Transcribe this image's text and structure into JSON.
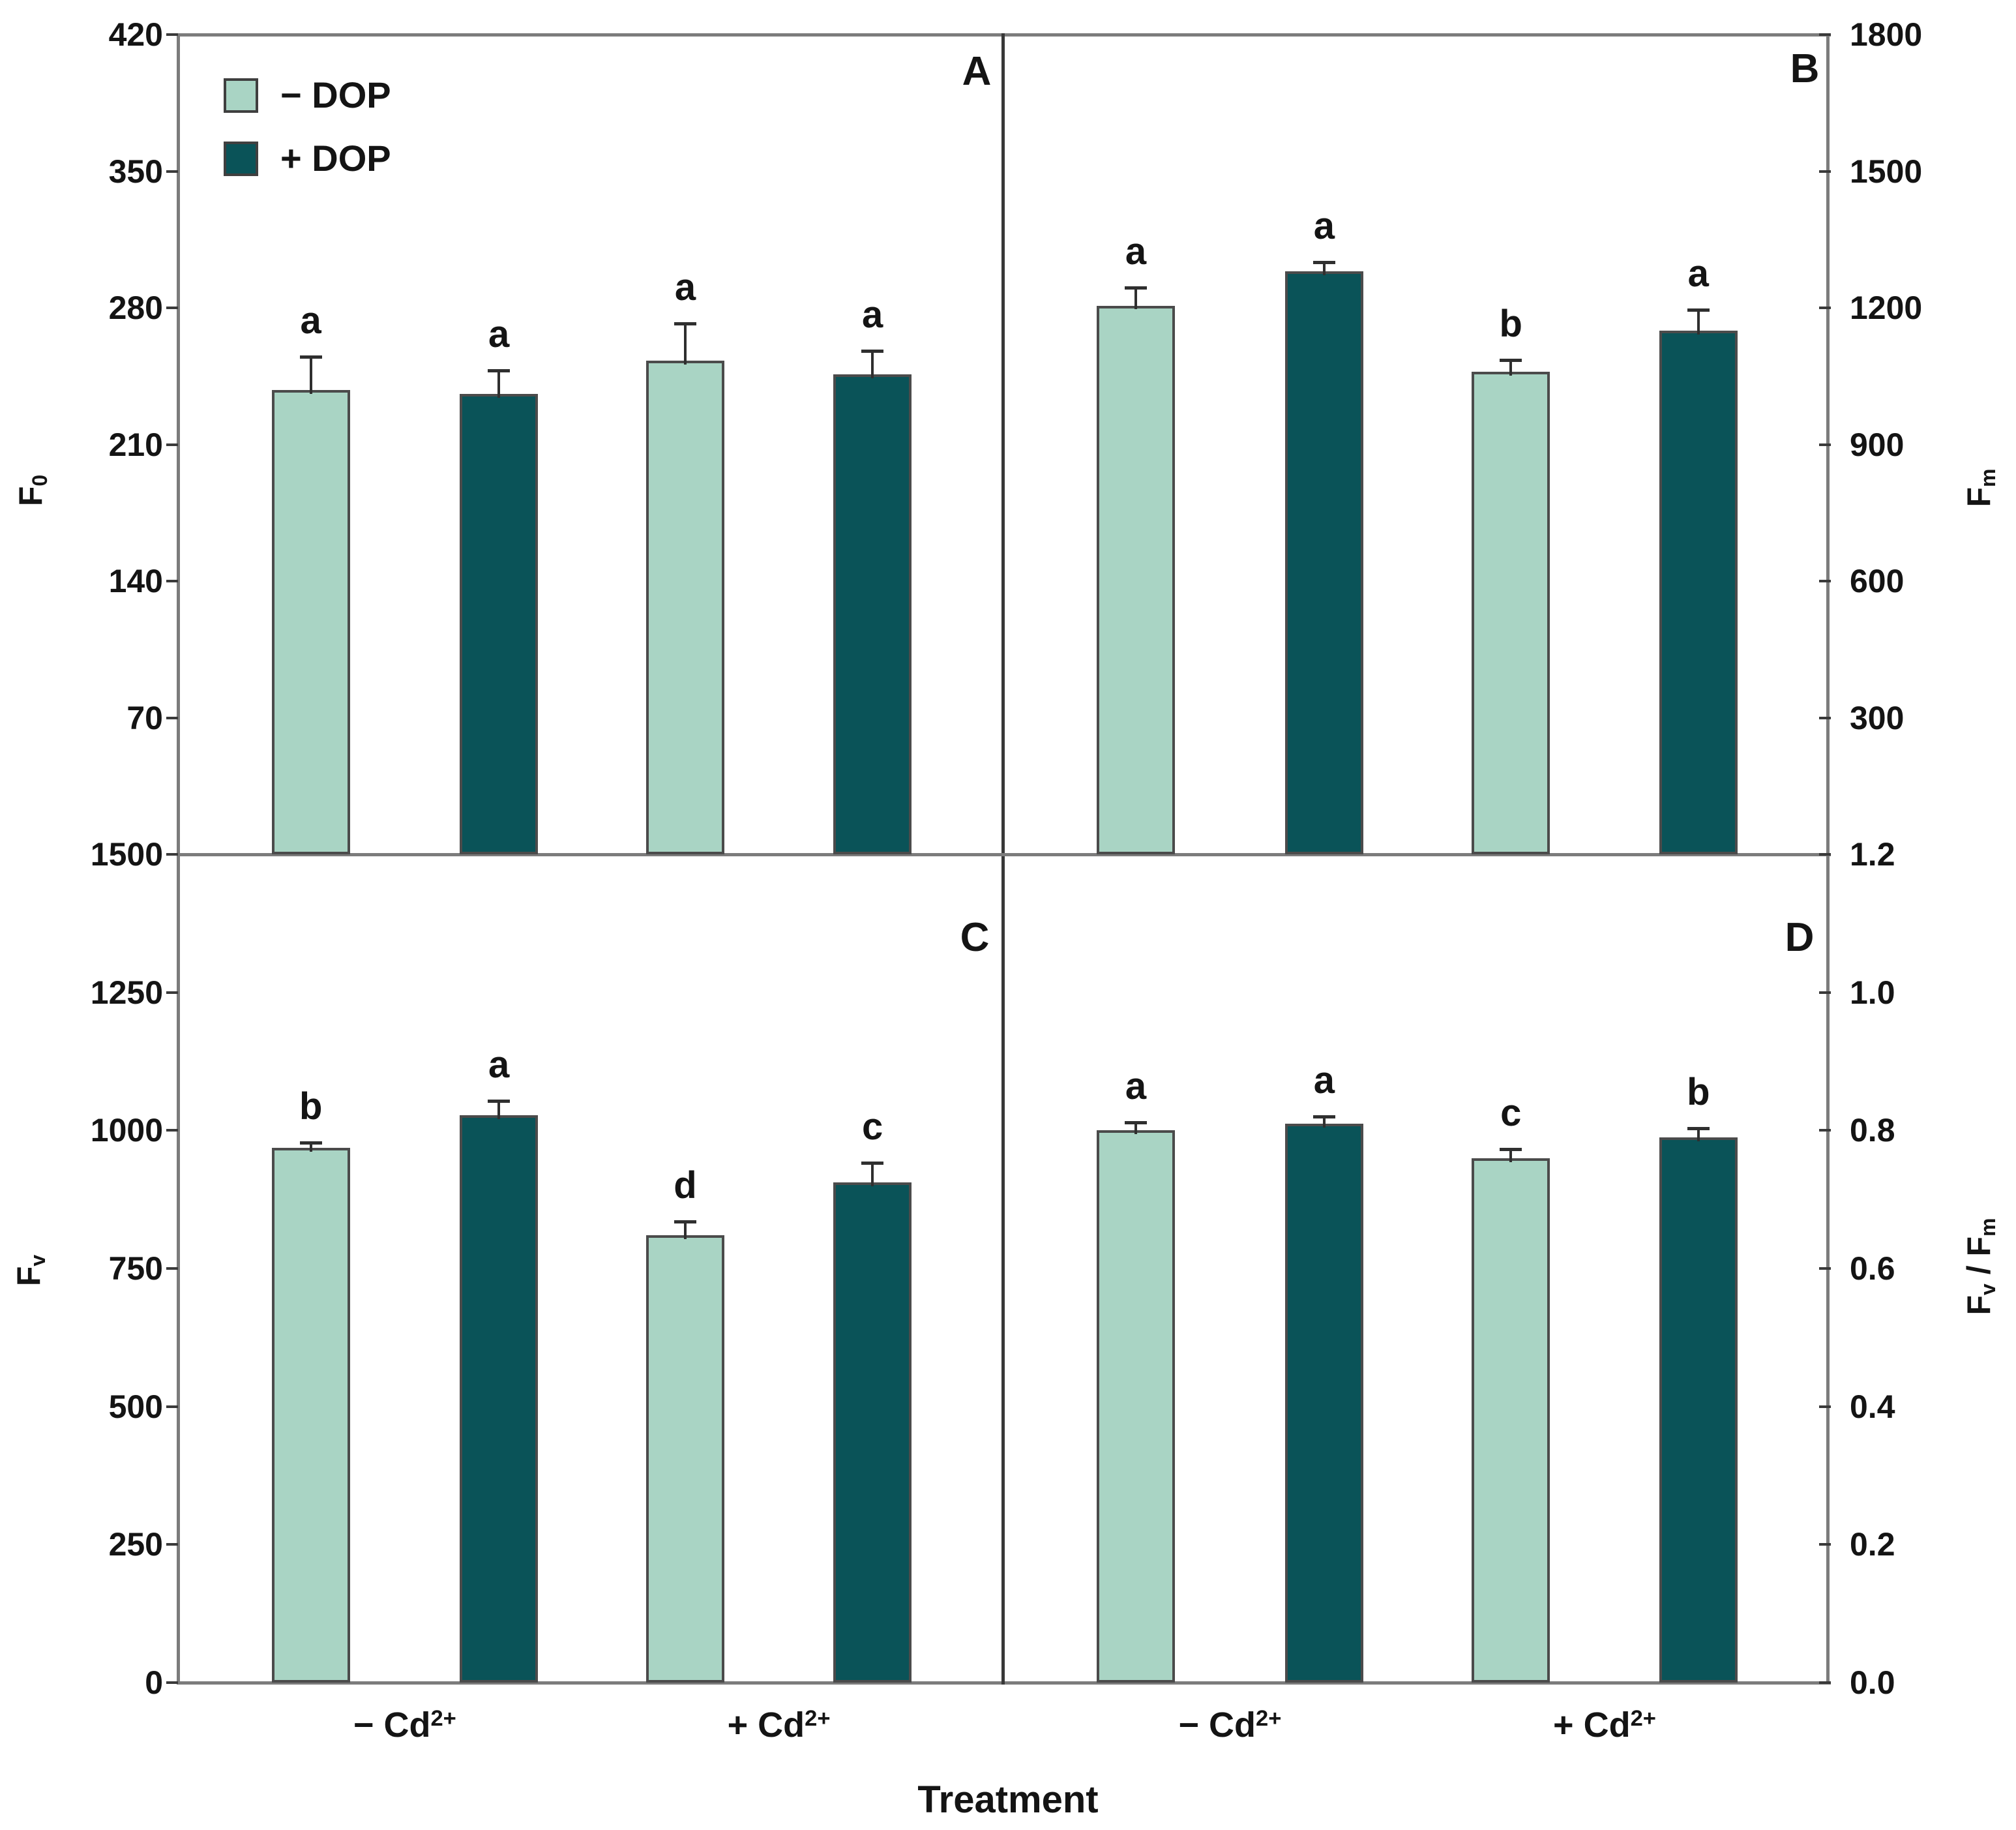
{
  "figure": {
    "xlabel": "Treatment",
    "x_group_labels": [
      [
        {
          "t": "− Cd"
        },
        {
          "sup": "2+"
        }
      ],
      [
        {
          "t": "+ Cd"
        },
        {
          "sup": "2+"
        }
      ]
    ],
    "legend": {
      "position": "top-left inside panel A",
      "items": [
        {
          "label": "− DOP",
          "key": "minus_dop"
        },
        {
          "label": "+ DOP",
          "key": "plus_dop"
        }
      ]
    },
    "colors": {
      "minus_dop": "#a9d4c4",
      "plus_dop": "#0a5358",
      "axis": "#7c7c7c",
      "divider": "#383838",
      "error": "#2f2f2f",
      "bar_border": "#4b4b4b",
      "text": "#141414",
      "background": "#ffffff"
    }
  },
  "chart_data": [
    {
      "panel": "A",
      "type": "bar",
      "ylabel_text": "F0",
      "ylabel_parts": [
        {
          "t": "F"
        },
        {
          "sub": "0"
        }
      ],
      "axis_side": "left",
      "grid": false,
      "ylim": [
        0,
        420
      ],
      "ytick_values": [
        420,
        350,
        280,
        210,
        140,
        70
      ],
      "ytick_labels": [
        "420",
        "350",
        "280",
        "210",
        "140",
        "70"
      ],
      "categories": [
        "− Cd²⁺",
        "+ Cd²⁺"
      ],
      "series": [
        {
          "name": "− DOP",
          "key": "minus_dop",
          "values": [
            238,
            253
          ],
          "errors": [
            17,
            19
          ],
          "letters": [
            "a",
            "a"
          ]
        },
        {
          "name": "+ DOP",
          "key": "plus_dop",
          "values": [
            236,
            246
          ],
          "errors": [
            12,
            12
          ],
          "letters": [
            "a",
            "a"
          ]
        }
      ]
    },
    {
      "panel": "B",
      "type": "bar",
      "ylabel_text": "Fm",
      "ylabel_parts": [
        {
          "t": "F"
        },
        {
          "sub": "m"
        }
      ],
      "axis_side": "right",
      "grid": false,
      "ylim": [
        0,
        1800
      ],
      "ytick_values": [
        1800,
        1500,
        1200,
        900,
        600,
        300
      ],
      "ytick_labels": [
        "1800",
        "1500",
        "1200",
        "900",
        "600",
        "300"
      ],
      "categories": [
        "− Cd²⁺",
        "+ Cd²⁺"
      ],
      "series": [
        {
          "name": "− DOP",
          "key": "minus_dop",
          "values": [
            1205,
            1060
          ],
          "errors": [
            40,
            25
          ],
          "letters": [
            "a",
            "b"
          ]
        },
        {
          "name": "+ DOP",
          "key": "plus_dop",
          "values": [
            1280,
            1150
          ],
          "errors": [
            20,
            45
          ],
          "letters": [
            "a",
            "a"
          ]
        }
      ]
    },
    {
      "panel": "C",
      "type": "bar",
      "ylabel_text": "Fv",
      "ylabel_parts": [
        {
          "t": "F"
        },
        {
          "sub": "v"
        }
      ],
      "axis_side": "left",
      "grid": false,
      "ylim": [
        0,
        1500
      ],
      "ytick_values": [
        1500,
        1250,
        1000,
        750,
        500,
        250,
        0
      ],
      "ytick_labels": [
        "1500",
        "1250",
        "1000",
        "750",
        "500",
        "250",
        "0"
      ],
      "categories": [
        "− Cd²⁺",
        "+ Cd²⁺"
      ],
      "series": [
        {
          "name": "− DOP",
          "key": "minus_dop",
          "values": [
            968,
            810
          ],
          "errors": [
            10,
            25
          ],
          "letters": [
            "b",
            "d"
          ]
        },
        {
          "name": "+ DOP",
          "key": "plus_dop",
          "values": [
            1028,
            906
          ],
          "errors": [
            26,
            35
          ],
          "letters": [
            "a",
            "c"
          ]
        }
      ]
    },
    {
      "panel": "D",
      "type": "bar",
      "ylabel_text": "Fv / Fm",
      "ylabel_parts": [
        {
          "t": "F"
        },
        {
          "sub": "v"
        },
        {
          "t": " / F"
        },
        {
          "sub": "m"
        }
      ],
      "axis_side": "right",
      "grid": false,
      "ylim": [
        0,
        1.2
      ],
      "ytick_values": [
        1.2,
        1.0,
        0.8,
        0.6,
        0.4,
        0.2,
        0.0
      ],
      "ytick_labels": [
        "1.2",
        "1.0",
        "0.8",
        "0.6",
        "0.4",
        "0.2",
        "0.0"
      ],
      "categories": [
        "− Cd²⁺",
        "+ Cd²⁺"
      ],
      "series": [
        {
          "name": "− DOP",
          "key": "minus_dop",
          "values": [
            0.8,
            0.76
          ],
          "errors": [
            0.012,
            0.013
          ],
          "letters": [
            "a",
            "c"
          ]
        },
        {
          "name": "+ DOP",
          "key": "plus_dop",
          "values": [
            0.81,
            0.79
          ],
          "errors": [
            0.01,
            0.013
          ],
          "letters": [
            "a",
            "b"
          ]
        }
      ]
    }
  ]
}
